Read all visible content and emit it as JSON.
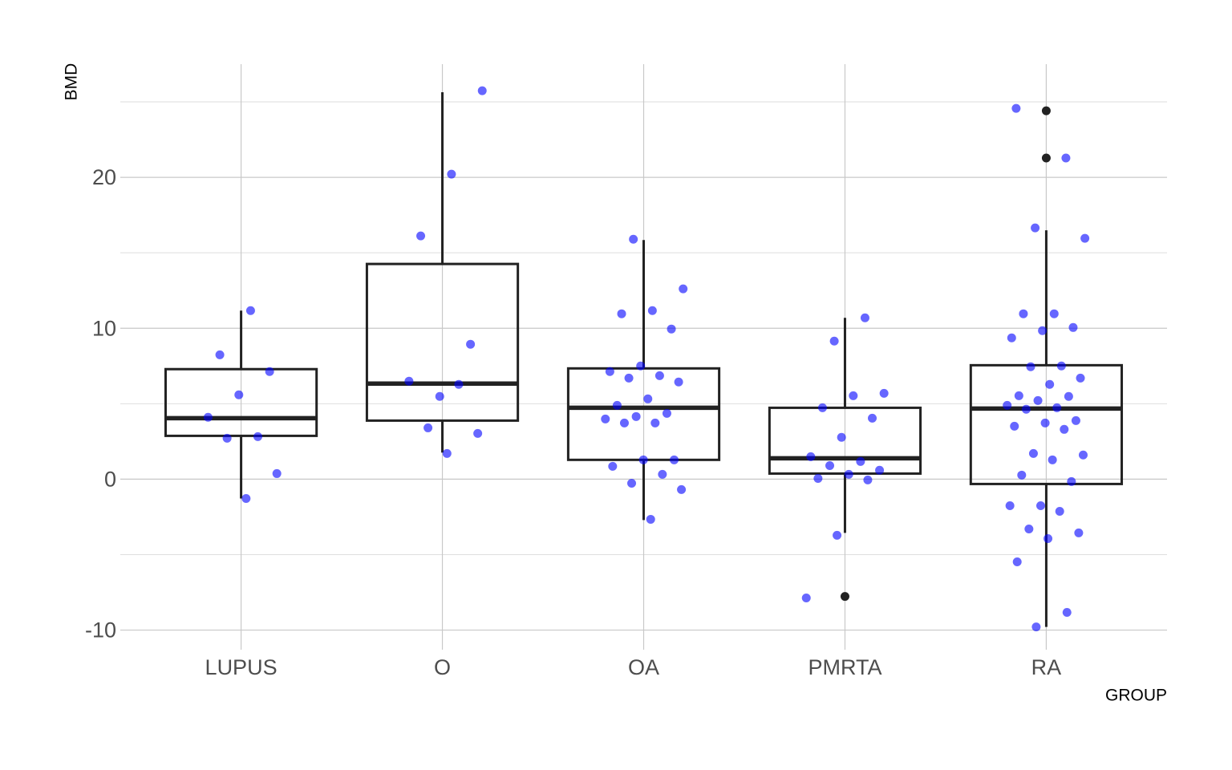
{
  "chart_data": {
    "type": "boxplot",
    "x_label": "GROUP",
    "y_label": "BMD",
    "categories": [
      "LUPUS",
      "O",
      "OA",
      "PMRTA",
      "RA"
    ],
    "boxes": [
      {
        "whisker_low": -1.28,
        "q1": 2.87,
        "median": 4.04,
        "q3": 7.29,
        "whisker_high": 11.17,
        "outliers": []
      },
      {
        "whisker_low": 1.76,
        "q1": 3.88,
        "median": 6.33,
        "q3": 14.26,
        "whisker_high": 25.64,
        "outliers": []
      },
      {
        "whisker_low": -2.71,
        "q1": 1.28,
        "median": 4.73,
        "q3": 7.34,
        "whisker_high": 15.85,
        "outliers": []
      },
      {
        "whisker_low": -3.56,
        "q1": 0.37,
        "median": 1.38,
        "q3": 4.73,
        "whisker_high": 10.69,
        "outliers": [
          -7.77
        ]
      },
      {
        "whisker_low": -9.79,
        "q1": -0.32,
        "median": 4.68,
        "q3": 7.55,
        "whisker_high": 16.49,
        "outliers": [
          24.41,
          21.28
        ]
      }
    ],
    "points": [
      [
        11.17,
        8.24,
        7.13,
        5.59,
        4.1,
        2.82,
        2.71,
        0.37,
        -1.28
      ],
      [
        25.74,
        20.21,
        16.12,
        8.94,
        5.48,
        6.49,
        6.28,
        3.4,
        3.03,
        1.7
      ],
      [
        15.9,
        12.61,
        11.17,
        10.96,
        9.95,
        7.5,
        7.13,
        6.86,
        6.7,
        6.44,
        5.32,
        4.89,
        4.36,
        4.15,
        3.99,
        3.72,
        3.72,
        1.28,
        1.28,
        0.85,
        0.32,
        -0.27,
        -0.69,
        -2.66
      ],
      [
        10.69,
        9.15,
        5.69,
        5.53,
        4.73,
        4.04,
        2.77,
        1.49,
        1.17,
        0.9,
        0.59,
        0.32,
        0.05,
        -0.05,
        -3.72,
        -7.87
      ],
      [
        24.57,
        21.28,
        16.65,
        15.96,
        10.96,
        10.96,
        10.05,
        9.84,
        9.36,
        7.5,
        7.45,
        6.7,
        6.28,
        5.53,
        5.48,
        5.21,
        4.89,
        4.73,
        4.63,
        3.88,
        3.72,
        3.51,
        3.3,
        1.7,
        1.6,
        1.28,
        0.27,
        -0.16,
        -1.76,
        -1.76,
        -2.13,
        -3.3,
        -3.56,
        -3.94,
        -5.48,
        -8.83,
        -9.79
      ]
    ],
    "point_color": "#0000ff",
    "box_color": "#222222",
    "outlier_color": "#222222",
    "ylim": [
      -11.3,
      27.5
    ],
    "yticks": [
      -10,
      0,
      10,
      20
    ],
    "minor_yticks": [
      -5,
      5,
      15,
      25
    ],
    "grid": true
  }
}
